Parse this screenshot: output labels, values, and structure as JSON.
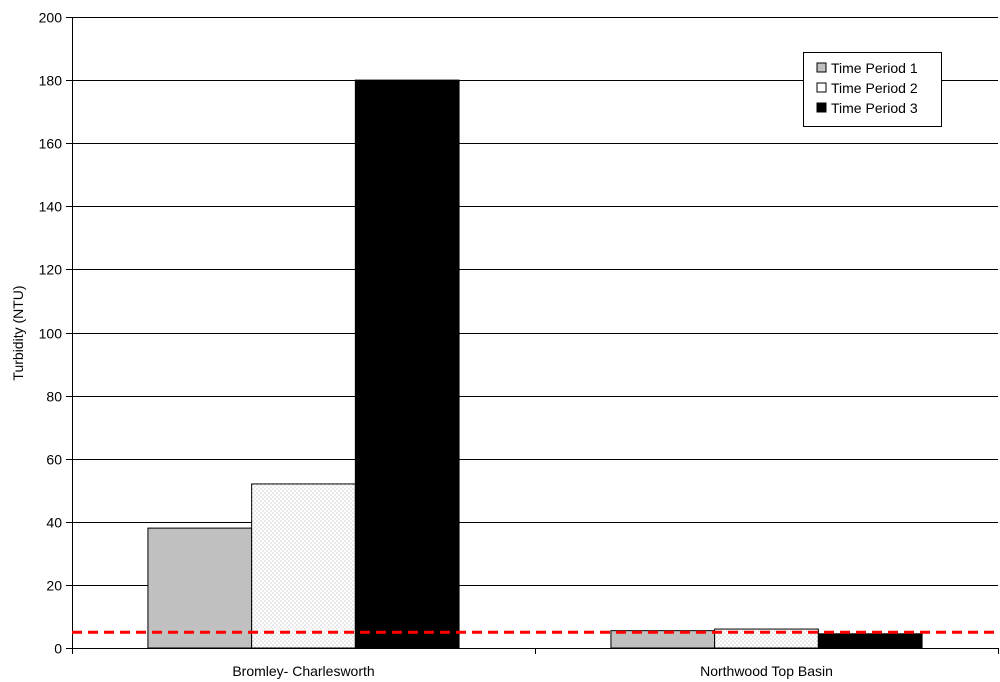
{
  "chart_data": {
    "type": "bar",
    "title": "",
    "xlabel": "",
    "ylabel": "Turbidity (NTU)",
    "ylim": [
      0,
      200
    ],
    "ytick_step": 20,
    "grid": true,
    "legend_position": "top-right",
    "categories": [
      "Bromley- Charlesworth",
      "Northwood Top Basin"
    ],
    "series": [
      {
        "name": "Time Period 1",
        "values": [
          38,
          5.5
        ],
        "color": "#c0c0c0",
        "pattern": "solid"
      },
      {
        "name": "Time Period 2",
        "values": [
          52,
          6
        ],
        "color": "#ffffff",
        "pattern": "dotted"
      },
      {
        "name": "Time Period 3",
        "values": [
          180,
          4.5
        ],
        "color": "#000000",
        "pattern": "solid"
      }
    ],
    "reference_line": {
      "value": 5,
      "color": "#ff0000",
      "style": "dashed"
    }
  }
}
